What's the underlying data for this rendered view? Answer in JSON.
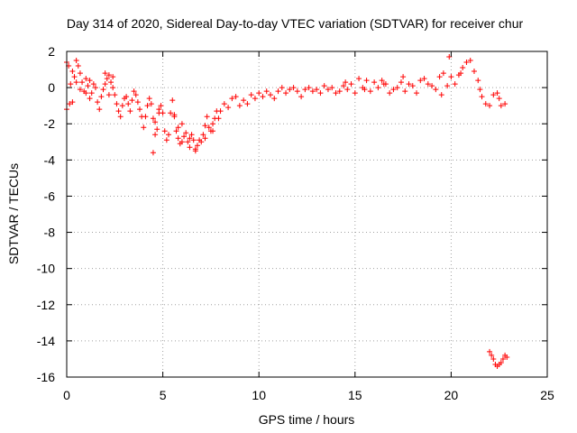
{
  "chart_data": {
    "type": "scatter",
    "title": "Day 314 of 2020, Sidereal Day-to-day VTEC variation (SDTVAR) for receiver chur",
    "xlabel": "GPS time / hours",
    "ylabel": "SDTVAR / TECUs",
    "xlim": [
      0,
      25
    ],
    "ylim": [
      -16,
      2
    ],
    "x_ticks": [
      0,
      5,
      10,
      15,
      20,
      25
    ],
    "y_ticks": [
      2,
      0,
      -2,
      -4,
      -6,
      -8,
      -10,
      -12,
      -14,
      -16
    ],
    "x_tick_labels": [
      "0",
      "5",
      "10",
      "15",
      "20",
      "25"
    ],
    "y_tick_labels": [
      "2",
      "0",
      "-2",
      "-4",
      "-6",
      "-8",
      "-10",
      "-12",
      "-14",
      "-16"
    ],
    "grid": true,
    "marker": "+",
    "color": "#ff0000",
    "series": [
      {
        "name": "SDTVAR",
        "x": [
          0.0,
          0.1,
          0.2,
          0.3,
          0.4,
          0.5,
          0.6,
          0.7,
          0.8,
          0.9,
          1.0,
          1.1,
          1.2,
          1.3,
          1.4,
          1.5,
          1.6,
          1.7,
          1.8,
          1.9,
          2.0,
          2.1,
          2.2,
          2.3,
          2.4,
          2.5,
          2.6,
          2.7,
          2.8,
          2.9,
          3.0,
          3.1,
          3.2,
          3.3,
          3.4,
          3.5,
          3.6,
          3.7,
          3.8,
          3.9,
          4.0,
          4.1,
          4.2,
          4.3,
          4.4,
          4.5,
          4.6,
          4.7,
          4.8,
          4.9,
          5.0,
          5.1,
          5.2,
          5.3,
          5.4,
          5.5,
          5.6,
          5.7,
          5.8,
          5.9,
          6.0,
          6.1,
          6.2,
          6.3,
          6.4,
          6.5,
          6.6,
          6.7,
          6.8,
          6.9,
          7.0,
          7.1,
          7.2,
          7.3,
          7.4,
          7.5,
          7.6,
          7.7,
          7.8,
          7.9,
          8.0,
          8.2,
          8.4,
          8.6,
          8.8,
          9.0,
          9.2,
          9.4,
          9.6,
          9.8,
          10.0,
          10.2,
          10.4,
          10.6,
          10.8,
          11.0,
          11.2,
          11.4,
          11.6,
          11.8,
          12.0,
          12.2,
          12.4,
          12.6,
          12.8,
          13.0,
          13.2,
          13.4,
          13.6,
          13.8,
          14.0,
          14.2,
          14.4,
          14.6,
          14.8,
          15.0,
          15.2,
          15.4,
          15.6,
          15.8,
          16.0,
          16.2,
          16.4,
          16.6,
          16.8,
          17.0,
          17.2,
          17.4,
          17.6,
          17.8,
          18.0,
          18.2,
          18.4,
          18.6,
          18.8,
          19.0,
          19.2,
          19.4,
          19.6,
          19.8,
          19.9,
          20.0,
          20.2,
          20.4,
          20.6,
          20.8,
          21.0,
          21.2,
          21.4,
          21.6,
          21.8,
          22.0,
          22.2,
          22.4,
          22.6,
          22.8,
          4.5,
          6.7,
          22.0,
          22.1,
          22.2,
          22.3,
          22.4,
          22.5,
          22.6,
          22.7,
          22.8,
          22.9,
          0.0,
          0.15,
          0.3,
          0.5,
          0.7,
          1.0,
          1.2,
          2.0,
          2.2,
          2.4,
          4.6,
          4.8,
          5.6,
          5.8,
          6.0,
          6.4,
          7.2,
          7.6,
          14.5,
          15.5,
          16.5,
          17.5,
          19.5,
          20.5,
          21.5,
          22.5
        ],
        "y": [
          1.4,
          1.2,
          0.2,
          -0.8,
          0.6,
          1.5,
          1.2,
          0.8,
          0.3,
          -0.2,
          0.5,
          0.1,
          -0.6,
          -0.3,
          0.2,
          0.0,
          -0.8,
          -1.2,
          -0.5,
          -0.1,
          0.2,
          0.5,
          0.7,
          0.3,
          0.0,
          -0.4,
          -0.9,
          -1.3,
          -1.6,
          -1.0,
          -0.6,
          -0.5,
          -0.9,
          -1.3,
          -0.7,
          -0.2,
          -0.4,
          -0.8,
          -1.2,
          -1.6,
          -2.2,
          -1.6,
          -1.0,
          -0.6,
          -0.9,
          -1.7,
          -1.9,
          -2.3,
          -1.4,
          -1.0,
          -1.4,
          -2.4,
          -2.9,
          -2.6,
          -1.4,
          -0.7,
          -1.6,
          -2.4,
          -2.8,
          -3.1,
          -3.0,
          -2.7,
          -2.5,
          -3.0,
          -3.3,
          -2.6,
          -2.9,
          -3.4,
          -3.2,
          -2.9,
          -3.0,
          -2.6,
          -2.1,
          -1.6,
          -2.2,
          -2.4,
          -2.0,
          -1.7,
          -1.3,
          -1.7,
          -1.3,
          -0.9,
          -1.1,
          -0.6,
          -0.5,
          -1.0,
          -0.7,
          -0.9,
          -0.4,
          -0.6,
          -0.3,
          -0.5,
          -0.2,
          -0.4,
          -0.6,
          -0.2,
          0.0,
          -0.3,
          -0.1,
          0.0,
          -0.2,
          -0.5,
          -0.1,
          0.0,
          -0.2,
          -0.1,
          -0.3,
          0.1,
          -0.1,
          0.0,
          -0.3,
          -0.2,
          0.1,
          -0.1,
          0.2,
          -0.3,
          0.5,
          0.0,
          0.4,
          -0.2,
          0.3,
          0.0,
          0.4,
          0.2,
          -0.3,
          -0.1,
          0.0,
          0.3,
          -0.2,
          0.2,
          0.1,
          -0.3,
          0.4,
          0.5,
          0.2,
          0.1,
          -0.1,
          0.6,
          0.8,
          0.1,
          1.7,
          0.6,
          0.2,
          0.7,
          1.1,
          1.4,
          1.5,
          0.9,
          0.4,
          -0.5,
          -0.9,
          -1.0,
          -0.4,
          -0.3,
          -1.0,
          -0.9,
          -3.6,
          -3.5,
          -14.6,
          -14.8,
          -15.0,
          -15.3,
          -15.4,
          -15.3,
          -15.2,
          -15.0,
          -14.8,
          -14.9,
          -1.2,
          -0.9,
          0.9,
          0.3,
          -0.1,
          -0.3,
          0.4,
          0.8,
          -0.4,
          0.6,
          -2.6,
          -1.2,
          -1.5,
          -2.2,
          -2.0,
          -2.8,
          -2.8,
          -2.4,
          0.3,
          -0.1,
          0.2,
          0.6,
          -0.4,
          0.8,
          -0.1,
          -0.6
        ]
      }
    ]
  }
}
